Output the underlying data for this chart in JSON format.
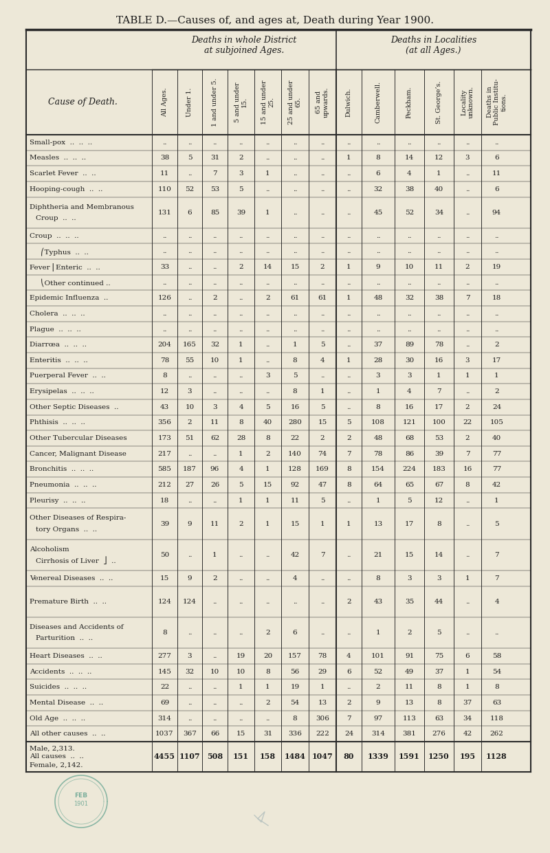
{
  "title": "TABLE D.—Causes of, and ages at, Death during Year 1900.",
  "bg_color": "#ede8d8",
  "line_color": "#2a2a2a",
  "text_color": "#1a1a1a",
  "rows": [
    [
      "Small-pox  ..  ..  ..",
      "..",
      "..",
      "..",
      "..",
      "..",
      "..",
      "..",
      "..",
      "..",
      "..",
      "..",
      "..",
      ".."
    ],
    [
      "Measles  ..  ..  ..",
      "38",
      "5",
      "31",
      "2",
      "..",
      "..",
      "..",
      "1",
      "8",
      "14",
      "12",
      "3",
      "6"
    ],
    [
      "Scarlet Fever  ..  ..",
      "11",
      "..",
      "7",
      "3",
      "1",
      "..",
      "..",
      "..",
      "6",
      "4",
      "1",
      "..",
      "11"
    ],
    [
      "Hooping-cough  ..  ..",
      "110",
      "52",
      "53",
      "5",
      "..",
      "..",
      "..",
      "..",
      "32",
      "38",
      "40",
      "..",
      "6"
    ],
    [
      "Diphtheria and Membranous\nCroup  ..  ..",
      "131",
      "6",
      "85",
      "39",
      "1",
      "..",
      "..",
      "..",
      "45",
      "52",
      "34",
      "..",
      "94"
    ],
    [
      "Croup  ..  ..  ..",
      "..",
      "..",
      "..",
      "..",
      "..",
      "..",
      "..",
      "..",
      "..",
      "..",
      "..",
      "..",
      ".."
    ],
    [
      "     ⎛Typhus  ..  ..",
      "..",
      "..",
      "..",
      "..",
      "..",
      "..",
      "..",
      "..",
      "..",
      "..",
      "..",
      "..",
      ".."
    ],
    [
      "Fever ⎜Enteric  ..  ..",
      "33",
      "..",
      "..",
      "2",
      "14",
      "15",
      "2",
      "1",
      "9",
      "10",
      "11",
      "2",
      "19"
    ],
    [
      "     ⎝Other continued ..",
      "..",
      "..",
      "..",
      "..",
      "..",
      "..",
      "..",
      "..",
      "..",
      "..",
      "..",
      "..",
      ".."
    ],
    [
      "Epidemic Influenza  ..",
      "126",
      "..",
      "2",
      "..",
      "2",
      "61",
      "61",
      "1",
      "48",
      "32",
      "38",
      "7",
      "18"
    ],
    [
      "Cholera  ..  ..  ..",
      "..",
      "..",
      "..",
      "..",
      "..",
      "..",
      "..",
      "..",
      "..",
      "..",
      "..",
      "..",
      ".."
    ],
    [
      "Plague  ..  ..  ..",
      "..",
      "..",
      "..",
      "..",
      "..",
      "..",
      "..",
      "..",
      "..",
      "..",
      "..",
      "..",
      ".."
    ],
    [
      "Diarrœa  ..  ..  ..",
      "204",
      "165",
      "32",
      "1",
      "..",
      "1",
      "5",
      "..",
      "37",
      "89",
      "78",
      "..",
      "2"
    ],
    [
      "Enteritis  ..  ..  ..",
      "78",
      "55",
      "10",
      "1",
      "..",
      "8",
      "4",
      "1",
      "28",
      "30",
      "16",
      "3",
      "17"
    ],
    [
      "Puerperal Fever  ..  ..",
      "8",
      "..",
      "..",
      "..",
      "3",
      "5",
      "..",
      "..",
      "3",
      "3",
      "1",
      "1",
      "1"
    ],
    [
      "Erysipelas  ..  ..  ..",
      "12",
      "3",
      "..",
      "..",
      "..",
      "8",
      "1",
      "..",
      "1",
      "4",
      "7",
      "..",
      "2"
    ],
    [
      "Other Septic Diseases  ..",
      "43",
      "10",
      "3",
      "4",
      "5",
      "16",
      "5",
      "..",
      "8",
      "16",
      "17",
      "2",
      "24"
    ],
    [
      "Phthisis  ..  ..  ..",
      "356",
      "2",
      "11",
      "8",
      "40",
      "280",
      "15",
      "5",
      "108",
      "121",
      "100",
      "22",
      "105"
    ],
    [
      "Other Tubercular Diseases",
      "173",
      "51",
      "62",
      "28",
      "8",
      "22",
      "2",
      "2",
      "48",
      "68",
      "53",
      "2",
      "40"
    ],
    [
      "Cancer, Malignant Disease",
      "217",
      "..",
      "..",
      "1",
      "2",
      "140",
      "74",
      "7",
      "78",
      "86",
      "39",
      "7",
      "77"
    ],
    [
      "Bronchitis  ..  ..  ..",
      "585",
      "187",
      "96",
      "4",
      "1",
      "128",
      "169",
      "8",
      "154",
      "224",
      "183",
      "16",
      "77"
    ],
    [
      "Pneumonia  ..  ..  ..",
      "212",
      "27",
      "26",
      "5",
      "15",
      "92",
      "47",
      "8",
      "64",
      "65",
      "67",
      "8",
      "42"
    ],
    [
      "Pleurisy  ..  ..  ..",
      "18",
      "..",
      "..",
      "1",
      "1",
      "11",
      "5",
      "..",
      "1",
      "5",
      "12",
      "..",
      "1"
    ],
    [
      "Other Diseases of Respira-\ntory Organs  ..  ..",
      "39",
      "9",
      "11",
      "2",
      "1",
      "15",
      "1",
      "1",
      "13",
      "17",
      "8",
      "..",
      "5"
    ],
    [
      "Alcoholism\nCirrhosis of Liver  ⎦  ..",
      "50",
      "..",
      "1",
      "..",
      "..",
      "42",
      "7",
      "..",
      "21",
      "15",
      "14",
      "..",
      "7"
    ],
    [
      "Venereal Diseases  ..  ..",
      "15",
      "9",
      "2",
      "..",
      "..",
      "4",
      "..",
      "..",
      "8",
      "3",
      "3",
      "1",
      "7"
    ],
    [
      "Premature Birth  ..  ..",
      "124",
      "124",
      "..",
      "..",
      "..",
      "..",
      "..",
      "2",
      "43",
      "35",
      "44",
      "..",
      "4"
    ],
    [
      "Diseases and Accidents of\nParturition  ..  ..",
      "8",
      "..",
      "..",
      "..",
      "2",
      "6",
      "..",
      "..",
      "1",
      "2",
      "5",
      "..",
      ".."
    ],
    [
      "Heart Diseases  ..  ..",
      "277",
      "3",
      "..",
      "19",
      "20",
      "157",
      "78",
      "4",
      "101",
      "91",
      "75",
      "6",
      "58"
    ],
    [
      "Accidents  ..  ..  ..",
      "145",
      "32",
      "10",
      "10",
      "8",
      "56",
      "29",
      "6",
      "52",
      "49",
      "37",
      "1",
      "54"
    ],
    [
      "Suicides  ..  ..  ..",
      "22",
      "..",
      "..",
      "1",
      "1",
      "19",
      "1",
      "..",
      "2",
      "11",
      "8",
      "1",
      "8"
    ],
    [
      "Mental Disease  ..  ..",
      "69",
      "..",
      "..",
      "..",
      "2",
      "54",
      "13",
      "2",
      "9",
      "13",
      "8",
      "37",
      "63"
    ],
    [
      "Old Age  ..  ..  ..",
      "314",
      "..",
      "..",
      "..",
      "..",
      "8",
      "306",
      "7",
      "97",
      "113",
      "63",
      "34",
      "118"
    ],
    [
      "All other causes  ..  ..",
      "1037",
      "367",
      "66",
      "15",
      "31",
      "336",
      "222",
      "24",
      "314",
      "381",
      "276",
      "42",
      "262"
    ]
  ],
  "footer_label": "Male, 2,313.\nAll causes  ..  ..\nFemale, 2,142.",
  "footer_vals": [
    "4455",
    "1107",
    "508",
    "151",
    "158",
    "1484",
    "1047",
    "80",
    "1339",
    "1591",
    "1250",
    "195",
    "1128"
  ],
  "col_headers_rotated": [
    "All Ages.",
    "Under 1.",
    "1 and under 5.",
    "5 and under\n15.",
    "15 and under\n25.",
    "25 and under\n65.",
    "65 and\nupwards.",
    "Dulwich.",
    "Camberwell.",
    "Peckham.",
    "St. George’s.",
    "Locality\nunknown.",
    "Deaths in\nPublic Institu-\ntions."
  ]
}
